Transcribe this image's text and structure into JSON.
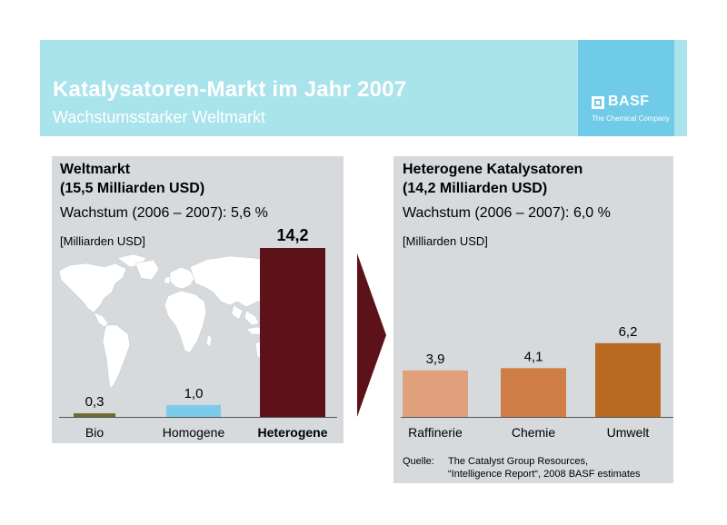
{
  "header": {
    "title": "Katalysatoren-Markt im Jahr 2007",
    "subtitle": "Wachstumsstarker Weltmarkt",
    "logo_text": "BASF",
    "logo_tagline": "The Chemical Company"
  },
  "colors": {
    "header_bg": "#a9e3ec",
    "logo_bg": "#6fcbe7",
    "panel_bg": "#d6dadd",
    "arrow": "#5d1219"
  },
  "left_panel": {
    "title_line1": "Weltmarkt",
    "title_line2": "(15,5 Milliarden USD)",
    "growth": "Wachstum (2006 – 2007): 5,6 %",
    "unit": "[Milliarden USD]"
  },
  "right_panel": {
    "title_line1": "Heterogene Katalysatoren",
    "title_line2": "(14,2 Milliarden USD)",
    "growth": "Wachstum (2006 – 2007): 6,0 %",
    "unit": "[Milliarden USD]"
  },
  "source": {
    "label": "Quelle:",
    "line1": "The Catalyst Group Resources,",
    "line2": "“Intelligence Report“, 2008 BASF estimates"
  },
  "chart_data": [
    {
      "type": "bar",
      "categories": [
        "Bio",
        "Homogene",
        "Heterogene"
      ],
      "values": [
        0.3,
        1.0,
        14.2
      ],
      "value_labels": [
        "0,3",
        "1,0",
        "14,2"
      ],
      "colors": [
        "#6d6b2e",
        "#7ccbea",
        "#5d1219"
      ],
      "emphasized_category": "Heterogene",
      "ylim": [
        0,
        14.2
      ]
    },
    {
      "type": "bar",
      "categories": [
        "Raffinerie",
        "Chemie",
        "Umwelt"
      ],
      "values": [
        3.9,
        4.1,
        6.2
      ],
      "value_labels": [
        "3,9",
        "4,1",
        "6,2"
      ],
      "colors": [
        "#e0a07c",
        "#cf7e48",
        "#b86a23"
      ],
      "ylim": [
        0,
        14.2
      ]
    }
  ]
}
